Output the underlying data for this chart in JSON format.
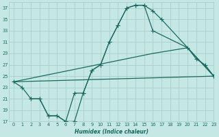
{
  "bg_color": "#c5e8e5",
  "grid_color": "#a8d0cc",
  "line_color": "#1a6860",
  "xlabel": "Humidex (Indice chaleur)",
  "xlim": [
    -0.5,
    23
  ],
  "ylim": [
    17,
    38
  ],
  "xticks": [
    0,
    1,
    2,
    3,
    4,
    5,
    6,
    7,
    8,
    9,
    10,
    11,
    12,
    13,
    14,
    15,
    16,
    17,
    18,
    19,
    20,
    21,
    22,
    23
  ],
  "yticks": [
    17,
    19,
    21,
    23,
    25,
    27,
    29,
    31,
    33,
    35,
    37
  ],
  "curve1_x": [
    0,
    1,
    2,
    3,
    4,
    5,
    6,
    7,
    8,
    9,
    10,
    11,
    12,
    13,
    14,
    15,
    16,
    17,
    23
  ],
  "curve1_y": [
    24,
    23,
    21,
    21,
    18,
    18,
    17,
    17,
    22,
    26,
    27,
    31,
    34,
    37,
    37.5,
    37.5,
    36.5,
    35,
    25
  ],
  "curve2_x": [
    2,
    3,
    4,
    5,
    6,
    7,
    8,
    9,
    10,
    11,
    12,
    13,
    14,
    15,
    16,
    20,
    21,
    22,
    23
  ],
  "curve2_y": [
    21,
    21,
    18,
    18,
    17,
    22,
    22,
    26,
    27,
    31,
    34,
    37,
    37.5,
    37.5,
    33,
    30,
    28,
    27,
    25
  ],
  "line1_x": [
    0,
    23
  ],
  "line1_y": [
    24,
    25
  ],
  "line2_x": [
    0,
    16,
    20,
    23
  ],
  "line2_y": [
    24,
    29,
    30,
    25
  ]
}
